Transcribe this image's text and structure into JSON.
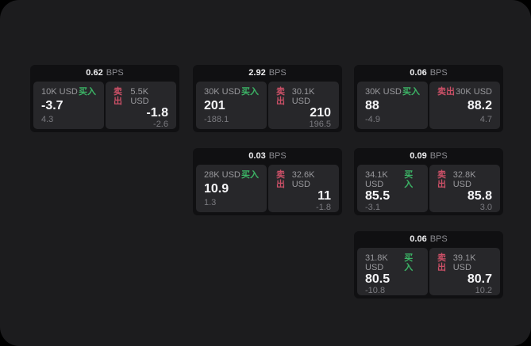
{
  "labels": {
    "bps_unit": "BPS",
    "buy": "买入",
    "sell": "卖出"
  },
  "colors": {
    "buy_green": "#3cb566",
    "sell_red": "#cb5067",
    "page_bg": "#1c1c1e",
    "card_bg": "#101012",
    "panel_bg": "#27272a"
  },
  "cards": [
    {
      "bps": "0.62",
      "buy": {
        "amount": "10K USD",
        "value": "-3.7",
        "sub": "4.3"
      },
      "sell": {
        "amount": "5.5K USD",
        "value": "-1.8",
        "sub": "-2.6"
      }
    },
    {
      "bps": "2.92",
      "buy": {
        "amount": "30K USD",
        "value": "201",
        "sub": "-188.1"
      },
      "sell": {
        "amount": "30.1K USD",
        "value": "210",
        "sub": "196.5"
      }
    },
    {
      "bps": "0.06",
      "buy": {
        "amount": "30K USD",
        "value": "88",
        "sub": "-4.9"
      },
      "sell": {
        "amount": "30K USD",
        "value": "88.2",
        "sub": "4.7"
      }
    },
    {
      "bps": "0.03",
      "buy": {
        "amount": "28K USD",
        "value": "10.9",
        "sub": "1.3"
      },
      "sell": {
        "amount": "32.6K USD",
        "value": "11",
        "sub": "-1.8"
      }
    },
    {
      "bps": "0.09",
      "buy": {
        "amount": "34.1K USD",
        "value": "85.5",
        "sub": "-3.1"
      },
      "sell": {
        "amount": "32.8K USD",
        "value": "85.8",
        "sub": "3.0"
      }
    },
    {
      "bps": "0.06",
      "buy": {
        "amount": "31.8K USD",
        "value": "80.5",
        "sub": "-10.8"
      },
      "sell": {
        "amount": "39.1K USD",
        "value": "80.7",
        "sub": "10.2"
      }
    }
  ]
}
